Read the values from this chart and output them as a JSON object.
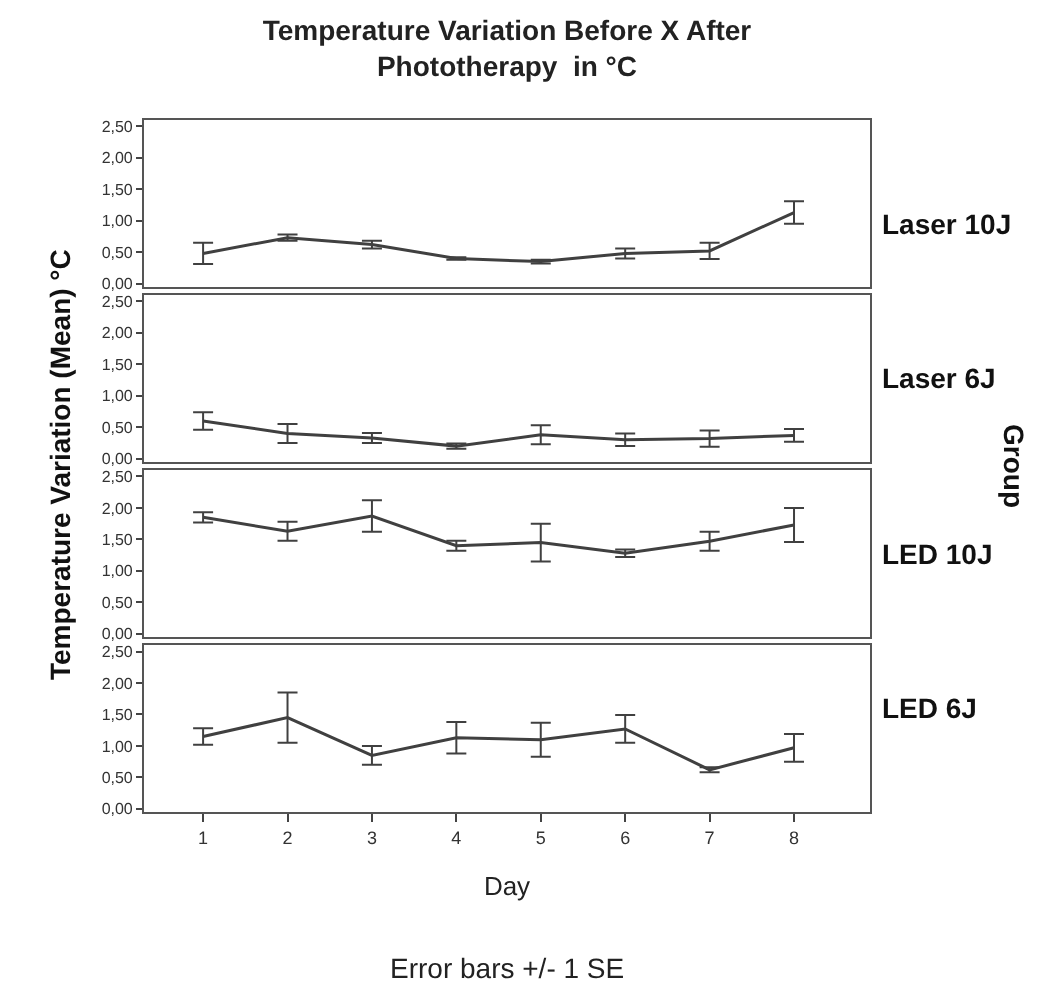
{
  "chart_data": [
    {
      "type": "line",
      "title": "Temperature Variation Before X After\nPhototherapy  in °C",
      "ylabel": "Temperature Variation (Mean) °C",
      "y2label": "Group",
      "categories": [
        "1",
        "2",
        "3",
        "4",
        "5",
        "6",
        "7",
        "8"
      ],
      "series": [
        {
          "name": "Laser 10J",
          "color": "#404040",
          "values": [
            0.48,
            0.73,
            0.62,
            0.4,
            0.35,
            0.48,
            0.52,
            1.13
          ],
          "errors": [
            0.17,
            0.05,
            0.06,
            0.02,
            0.03,
            0.08,
            0.13,
            0.18
          ]
        }
      ],
      "ylim": [
        -0.05,
        2.6
      ],
      "yticks": [
        {
          "value": 0,
          "label": "0,00"
        },
        {
          "value": 0.5,
          "label": "0,50"
        },
        {
          "value": 1,
          "label": "1,00"
        },
        {
          "value": 1.5,
          "label": "1,50"
        },
        {
          "value": 2,
          "label": "2,00"
        },
        {
          "value": 2.5,
          "label": "2,50"
        }
      ],
      "tick_labels": "y",
      "line_style": "solid"
    },
    {
      "type": "line",
      "categories": [
        "1",
        "2",
        "3",
        "4",
        "5",
        "6",
        "7",
        "8"
      ],
      "series": [
        {
          "name": "Laser 6J",
          "color": "#404040",
          "values": [
            0.6,
            0.4,
            0.33,
            0.2,
            0.38,
            0.3,
            0.32,
            0.37
          ],
          "errors": [
            0.14,
            0.15,
            0.08,
            0.04,
            0.15,
            0.1,
            0.13,
            0.1
          ]
        }
      ],
      "ylim": [
        -0.05,
        2.6
      ],
      "yticks": [
        {
          "value": 0,
          "label": "0,00"
        },
        {
          "value": 0.5,
          "label": "0,50"
        },
        {
          "value": 1,
          "label": "1,00"
        },
        {
          "value": 1.5,
          "label": "1,50"
        },
        {
          "value": 2,
          "label": "2,00"
        },
        {
          "value": 2.5,
          "label": "2,50"
        }
      ],
      "tick_labels": "y",
      "line_style": "solid"
    },
    {
      "type": "line",
      "categories": [
        "1",
        "2",
        "3",
        "4",
        "5",
        "6",
        "7",
        "8"
      ],
      "series": [
        {
          "name": "LED 10J",
          "color": "#404040",
          "values": [
            1.85,
            1.63,
            1.87,
            1.4,
            1.45,
            1.28,
            1.47,
            1.73
          ],
          "errors": [
            0.08,
            0.15,
            0.25,
            0.08,
            0.3,
            0.06,
            0.15,
            0.27
          ]
        }
      ],
      "ylim": [
        -0.05,
        2.6
      ],
      "yticks": [
        {
          "value": 0,
          "label": "0,00"
        },
        {
          "value": 0.5,
          "label": "0,50"
        },
        {
          "value": 1,
          "label": "1,00"
        },
        {
          "value": 1.5,
          "label": "1,50"
        },
        {
          "value": 2,
          "label": "2,00"
        },
        {
          "value": 2.5,
          "label": "2,50"
        }
      ],
      "tick_labels": "y",
      "line_style": "solid"
    },
    {
      "type": "line",
      "xlabel": "Day",
      "annotations": [
        "Error bars +/- 1 SE"
      ],
      "categories": [
        "1",
        "2",
        "3",
        "4",
        "5",
        "6",
        "7",
        "8"
      ],
      "series": [
        {
          "name": "LED 6J",
          "color": "#404040",
          "values": [
            1.15,
            1.45,
            0.85,
            1.13,
            1.1,
            1.27,
            0.62,
            0.97
          ],
          "errors": [
            0.13,
            0.4,
            0.15,
            0.25,
            0.27,
            0.22,
            0.04,
            0.22
          ]
        }
      ],
      "ylim": [
        -0.05,
        2.6
      ],
      "yticks": [
        {
          "value": 0,
          "label": "0,00"
        },
        {
          "value": 0.5,
          "label": "0,50"
        },
        {
          "value": 1,
          "label": "1,00"
        },
        {
          "value": 1.5,
          "label": "1,50"
        },
        {
          "value": 2,
          "label": "2,00"
        },
        {
          "value": 2.5,
          "label": "2,50"
        }
      ],
      "line_style": "solid"
    }
  ]
}
